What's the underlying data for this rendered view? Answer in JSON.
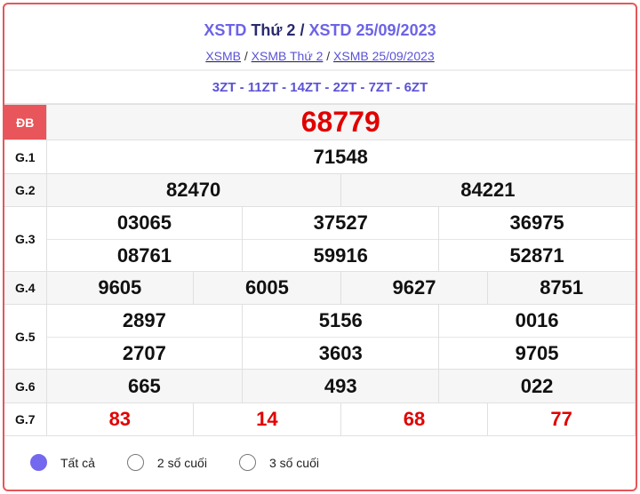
{
  "header": {
    "title_a": "XSTD",
    "title_b": "Thứ 2",
    "title_sep": "/",
    "title_c": "XSTD 25/09/2023",
    "breadcrumbs": [
      "XSMB",
      "XSMB Thứ 2",
      "XSMB 25/09/2023"
    ],
    "sep": "/"
  },
  "codes": "3ZT - 11ZT - 14ZT - 2ZT - 7ZT - 6ZT",
  "prizes": {
    "db": {
      "label": "ĐB",
      "value": "68779"
    },
    "g1": {
      "label": "G.1",
      "values": [
        "71548"
      ]
    },
    "g2": {
      "label": "G.2",
      "values": [
        "82470",
        "84221"
      ]
    },
    "g3": {
      "label": "G.3",
      "values": [
        "03065",
        "37527",
        "36975",
        "08761",
        "59916",
        "52871"
      ]
    },
    "g4": {
      "label": "G.4",
      "values": [
        "9605",
        "6005",
        "9627",
        "8751"
      ]
    },
    "g5": {
      "label": "G.5",
      "values": [
        "2897",
        "5156",
        "0016",
        "2707",
        "3603",
        "9705"
      ]
    },
    "g6": {
      "label": "G.6",
      "values": [
        "665",
        "493",
        "022"
      ]
    },
    "g7": {
      "label": "G.7",
      "values": [
        "83",
        "14",
        "68",
        "77"
      ]
    }
  },
  "filters": [
    {
      "label": "Tất cả",
      "selected": true
    },
    {
      "label": "2 số cuối",
      "selected": false
    },
    {
      "label": "3 số cuối",
      "selected": false
    }
  ],
  "colors": {
    "accent": "#6c63e6",
    "special": "#e10000",
    "border": "#e8555a"
  }
}
